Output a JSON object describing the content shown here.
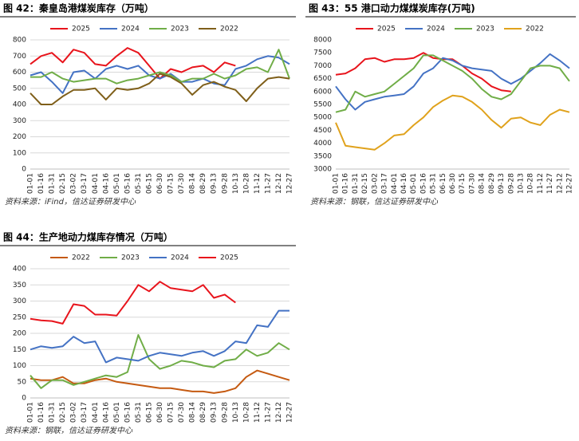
{
  "chart_data": [
    {
      "type": "line",
      "title": "图 42：秦皇岛港煤炭库存（万吨）",
      "source": "资料来源：iFind，信达证券研发中心",
      "categories": [
        "01-01",
        "01-16",
        "01-31",
        "02-15",
        "03-02",
        "03-17",
        "04-01",
        "04-16",
        "05-01",
        "05-16",
        "05-31",
        "06-15",
        "06-30",
        "07-15",
        "07-30",
        "08-14",
        "08-29",
        "09-13",
        "09-28",
        "10-13",
        "10-28",
        "11-12",
        "11-27",
        "12-12",
        "12-27"
      ],
      "ylim": [
        0,
        800
      ],
      "yticks": [
        0,
        100,
        200,
        300,
        400,
        500,
        600,
        700,
        800
      ],
      "grid": true,
      "series": [
        {
          "name": "2025",
          "color": "#e8141c",
          "values": [
            650,
            700,
            720,
            660,
            740,
            720,
            650,
            640,
            700,
            750,
            720,
            640,
            560,
            620,
            600,
            630,
            640,
            600,
            660,
            640,
            null,
            null,
            null,
            null,
            null
          ]
        },
        {
          "name": "2024",
          "color": "#4472c4",
          "values": [
            580,
            600,
            540,
            470,
            600,
            610,
            560,
            620,
            640,
            620,
            640,
            580,
            560,
            590,
            540,
            540,
            560,
            530,
            520,
            620,
            640,
            680,
            700,
            690,
            650
          ]
        },
        {
          "name": "2023",
          "color": "#70ad47",
          "values": [
            570,
            570,
            600,
            560,
            540,
            550,
            560,
            560,
            530,
            550,
            560,
            580,
            600,
            580,
            540,
            560,
            560,
            590,
            560,
            580,
            620,
            630,
            600,
            740,
            560
          ]
        },
        {
          "name": "2022",
          "color": "#7f5f1a",
          "values": [
            470,
            400,
            400,
            450,
            490,
            490,
            500,
            430,
            500,
            490,
            500,
            530,
            590,
            570,
            530,
            460,
            520,
            540,
            510,
            490,
            420,
            500,
            560,
            570,
            560
          ]
        }
      ]
    },
    {
      "type": "line",
      "title": "图 43：55 港口动力煤煤炭库存(万吨)",
      "source": "资料来源：钢联，信达证券研发中心",
      "categories": [
        "01-01",
        "01-16",
        "01-31",
        "02-15",
        "03-02",
        "03-17",
        "04-01",
        "04-16",
        "05-01",
        "05-16",
        "05-31",
        "06-15",
        "06-30",
        "07-15",
        "07-30",
        "08-14",
        "08-29",
        "09-13",
        "09-28",
        "10-13",
        "10-28",
        "11-12",
        "11-27",
        "12-12",
        "12-27"
      ],
      "ylim": [
        3000,
        8000
      ],
      "yticks": [
        3000,
        3500,
        4000,
        4500,
        5000,
        5500,
        6000,
        6500,
        7000,
        7500,
        8000
      ],
      "grid": false,
      "series": [
        {
          "name": "2025",
          "color": "#e8141c",
          "values": [
            6650,
            6700,
            6900,
            7250,
            7300,
            7150,
            7250,
            7250,
            7300,
            7500,
            7300,
            7250,
            7250,
            7000,
            6700,
            6500,
            6200,
            6050,
            6000,
            null,
            null,
            null,
            null,
            null,
            null
          ]
        },
        {
          "name": "2024",
          "color": "#4472c4",
          "values": [
            6200,
            5700,
            5300,
            5600,
            5700,
            5800,
            5850,
            5900,
            6200,
            6700,
            6900,
            7300,
            7200,
            7000,
            6900,
            6850,
            6800,
            6500,
            6300,
            6500,
            6800,
            7100,
            7450,
            7200,
            6900
          ]
        },
        {
          "name": "2023",
          "color": "#70ad47",
          "values": [
            5200,
            5300,
            6000,
            5800,
            5900,
            6000,
            6300,
            6600,
            6900,
            7400,
            7400,
            7200,
            7000,
            6800,
            6500,
            6100,
            5800,
            5700,
            5900,
            6400,
            6900,
            7000,
            7000,
            6900,
            6400
          ]
        },
        {
          "name": "2022",
          "color": "#e0a21c",
          "values": [
            4800,
            3900,
            3850,
            3800,
            3750,
            4000,
            4300,
            4350,
            4700,
            5000,
            5400,
            5650,
            5850,
            5800,
            5600,
            5300,
            4900,
            4600,
            4950,
            5000,
            4800,
            4700,
            5100,
            5300,
            5200
          ]
        }
      ]
    },
    {
      "type": "line",
      "title": "图 44：生产地动力煤库存情况（万吨）",
      "source": "资料来源：钢联，信达证券研发中心",
      "categories": [
        "01-01",
        "01-16",
        "01-31",
        "02-15",
        "03-02",
        "03-17",
        "04-01",
        "04-16",
        "05-01",
        "05-16",
        "05-31",
        "06-15",
        "06-30",
        "07-15",
        "07-30",
        "08-14",
        "08-29",
        "09-13",
        "09-28",
        "10-13",
        "10-28",
        "11-12",
        "11-27",
        "12-12",
        "12-27"
      ],
      "ylim": [
        0,
        400
      ],
      "yticks": [
        0,
        50,
        100,
        150,
        200,
        250,
        300,
        350,
        400
      ],
      "grid": true,
      "series": [
        {
          "name": "2022",
          "color": "#c55a11",
          "values": [
            60,
            55,
            55,
            65,
            45,
            45,
            55,
            60,
            50,
            45,
            40,
            35,
            30,
            30,
            25,
            20,
            20,
            15,
            20,
            30,
            65,
            85,
            75,
            65,
            55
          ]
        },
        {
          "name": "2023",
          "color": "#70ad47",
          "values": [
            70,
            30,
            55,
            55,
            40,
            50,
            60,
            70,
            65,
            80,
            195,
            120,
            90,
            100,
            115,
            110,
            100,
            95,
            115,
            120,
            150,
            130,
            140,
            170,
            150
          ]
        },
        {
          "name": "2024",
          "color": "#4472c4",
          "values": [
            150,
            160,
            155,
            160,
            190,
            170,
            175,
            110,
            125,
            120,
            115,
            130,
            140,
            135,
            130,
            140,
            145,
            130,
            145,
            175,
            170,
            225,
            220,
            270,
            270
          ]
        },
        {
          "name": "2025",
          "color": "#e8141c",
          "values": [
            245,
            240,
            238,
            230,
            290,
            285,
            258,
            258,
            255,
            300,
            350,
            330,
            360,
            340,
            335,
            330,
            350,
            310,
            320,
            295,
            null,
            null,
            null,
            null,
            null
          ]
        }
      ]
    }
  ]
}
